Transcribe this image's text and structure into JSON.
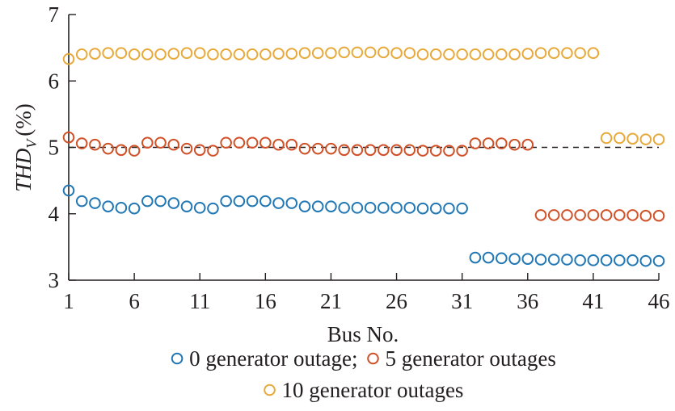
{
  "chart_data": {
    "type": "scatter",
    "xlabel": "Bus No.",
    "ylabel": "THD",
    "ylabel_subscript": "V",
    "ylabel_unit": "(%)",
    "xlim": [
      1,
      46
    ],
    "ylim": [
      3,
      7
    ],
    "xticks": [
      1,
      6,
      11,
      16,
      21,
      26,
      31,
      36,
      41,
      46
    ],
    "yticks": [
      3,
      4,
      5,
      6,
      7
    ],
    "reference_line": {
      "y": 5.0,
      "style": "dashed"
    },
    "legend": {
      "placement": "bottom",
      "rows": [
        [
          {
            "series": 0,
            "label": "0 generator outage;"
          },
          {
            "series": 1,
            "label": "5 generator outages"
          }
        ],
        [
          {
            "series": 2,
            "label": "10 generator outages"
          }
        ]
      ]
    },
    "series": [
      {
        "name": "0 generator outage",
        "color": "#2178b4",
        "x": [
          1,
          2,
          3,
          4,
          5,
          6,
          7,
          8,
          9,
          10,
          11,
          12,
          13,
          14,
          15,
          16,
          17,
          18,
          19,
          20,
          21,
          22,
          23,
          24,
          25,
          26,
          27,
          28,
          29,
          30,
          31,
          32,
          33,
          34,
          35,
          36,
          37,
          38,
          39,
          40,
          41,
          42,
          43,
          44,
          45,
          46
        ],
        "y": [
          4.35,
          4.19,
          4.16,
          4.11,
          4.09,
          4.08,
          4.19,
          4.19,
          4.16,
          4.11,
          4.09,
          4.08,
          4.19,
          4.19,
          4.19,
          4.19,
          4.16,
          4.16,
          4.11,
          4.11,
          4.11,
          4.09,
          4.09,
          4.09,
          4.09,
          4.09,
          4.09,
          4.08,
          4.08,
          4.08,
          4.08,
          3.34,
          3.34,
          3.33,
          3.32,
          3.32,
          3.31,
          3.31,
          3.31,
          3.3,
          3.3,
          3.3,
          3.3,
          3.3,
          3.29,
          3.29
        ]
      },
      {
        "name": "5 generator outages",
        "color": "#d05127",
        "x": [
          1,
          2,
          3,
          4,
          5,
          6,
          7,
          8,
          9,
          10,
          11,
          12,
          13,
          14,
          15,
          16,
          17,
          18,
          19,
          20,
          21,
          22,
          23,
          24,
          25,
          26,
          27,
          28,
          29,
          30,
          31,
          32,
          33,
          34,
          35,
          36,
          37,
          38,
          39,
          40,
          41,
          42,
          43,
          44,
          45,
          46
        ],
        "y": [
          5.15,
          5.06,
          5.04,
          4.98,
          4.96,
          4.95,
          5.07,
          5.07,
          5.04,
          4.98,
          4.96,
          4.95,
          5.07,
          5.07,
          5.07,
          5.07,
          5.04,
          5.04,
          4.98,
          4.98,
          4.98,
          4.96,
          4.96,
          4.96,
          4.96,
          4.96,
          4.96,
          4.95,
          4.95,
          4.95,
          4.95,
          5.06,
          5.06,
          5.06,
          5.04,
          5.04,
          3.98,
          3.98,
          3.98,
          3.98,
          3.98,
          3.98,
          3.98,
          3.98,
          3.97,
          3.97
        ]
      },
      {
        "name": "10 generator outages",
        "color": "#e8a93b",
        "x": [
          1,
          2,
          3,
          4,
          5,
          6,
          7,
          8,
          9,
          10,
          11,
          12,
          13,
          14,
          15,
          16,
          17,
          18,
          19,
          20,
          21,
          22,
          23,
          24,
          25,
          26,
          27,
          28,
          29,
          30,
          31,
          32,
          33,
          34,
          35,
          36,
          37,
          38,
          39,
          40,
          41,
          42,
          43,
          44,
          45,
          46
        ],
        "y": [
          6.33,
          6.4,
          6.41,
          6.42,
          6.42,
          6.4,
          6.4,
          6.4,
          6.41,
          6.42,
          6.42,
          6.4,
          6.4,
          6.4,
          6.4,
          6.4,
          6.41,
          6.41,
          6.42,
          6.42,
          6.42,
          6.43,
          6.43,
          6.43,
          6.43,
          6.42,
          6.42,
          6.4,
          6.4,
          6.4,
          6.4,
          6.4,
          6.4,
          6.4,
          6.4,
          6.41,
          6.42,
          6.42,
          6.42,
          6.42,
          6.42,
          5.14,
          5.14,
          5.13,
          5.12,
          5.12
        ]
      }
    ]
  }
}
